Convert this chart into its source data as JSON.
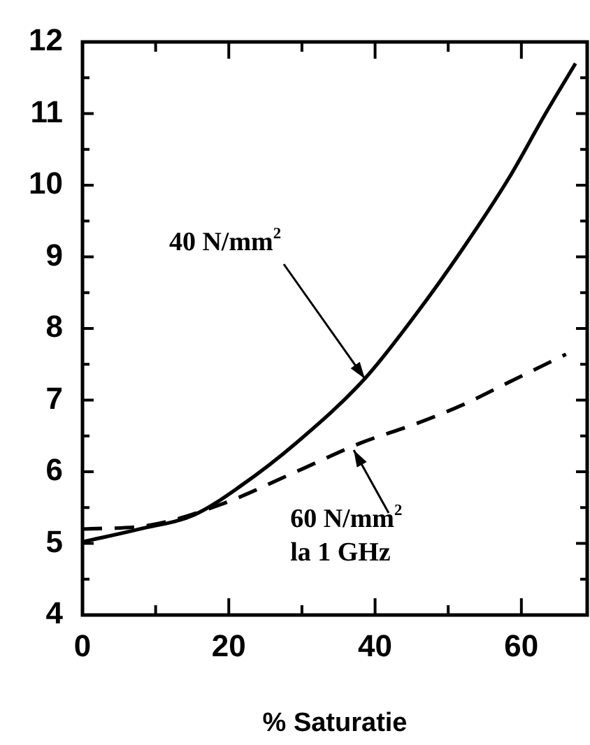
{
  "chart_data": {
    "type": "line",
    "xlabel": "% Saturatie",
    "xlim": [
      0,
      69
    ],
    "xticks": [
      0,
      {
        "value": 10,
        "label": null
      },
      20,
      {
        "value": 30,
        "label": null
      },
      40,
      {
        "value": 50,
        "label": null
      },
      60
    ],
    "ylim": [
      4,
      12
    ],
    "yticks": [
      4,
      {
        "value": 4.5,
        "label": null
      },
      5,
      {
        "value": 5.5,
        "label": null
      },
      6,
      {
        "value": 6.5,
        "label": null
      },
      7,
      {
        "value": 7.5,
        "label": null
      },
      8,
      {
        "value": 8.5,
        "label": null
      },
      9,
      {
        "value": 9.5,
        "label": null
      },
      10,
      {
        "value": 10.5,
        "label": null
      },
      11,
      {
        "value": 11.5,
        "label": null
      },
      12
    ],
    "grid": false,
    "legend": false,
    "marker": "none",
    "series": [
      {
        "color": "#000000",
        "line_style": "solid",
        "x": [
          0,
          7.8,
          15.3,
          21.6,
          29.2,
          38.6,
          45.6,
          51.9,
          58.3,
          63.3,
          67.4
        ],
        "values": [
          5.02,
          5.2,
          5.4,
          5.8,
          6.4,
          7.3,
          8.2,
          9.1,
          10.1,
          11.0,
          11.7
        ]
      },
      {
        "color": "#000000",
        "line_style": "dashed",
        "x": [
          0,
          9,
          19.1,
          29.2,
          38,
          45.6,
          51.9,
          58.3,
          66.1
        ],
        "values": [
          5.2,
          5.25,
          5.55,
          6.0,
          6.4,
          6.67,
          6.93,
          7.25,
          7.64
        ]
      }
    ],
    "annotations": [
      {
        "text": "40 N/mm$^{2}$",
        "x": 38.6,
        "y": 7.3
      },
      {
        "text": "60 N/mm$^{2}$",
        "x": 37,
        "y": 6.3
      },
      "la 1 GHz"
    ]
  }
}
